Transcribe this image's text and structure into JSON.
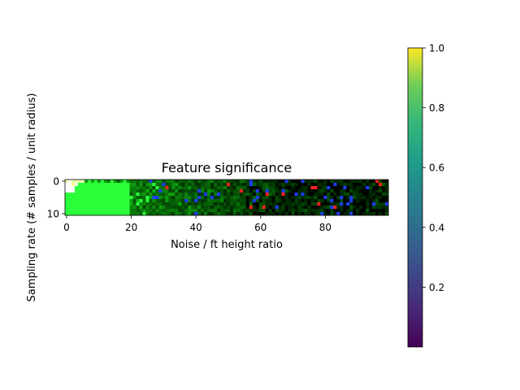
{
  "chart_data": [
    {
      "type": "heatmap",
      "title": "Feature significance",
      "xlabel": "Noise / ft height ratio",
      "ylabel": "Sampling rate (# samples / unit radius)",
      "x_range": [
        0,
        99
      ],
      "y_range": [
        0,
        10
      ],
      "x_ticks": [
        "0",
        "20",
        "40",
        "60",
        "80"
      ],
      "y_ticks": [
        "0",
        "10"
      ],
      "n_cols": 100,
      "n_rows": 11,
      "description_hint": "RGB composite: bright green/white at low noise, fading to dark green/black with sparse blue and red pixels as noise increases",
      "colors": {
        "green": "#2bff3a",
        "white": "#ffffff",
        "yellow": "#ffff80",
        "blue": "#1f3cff",
        "red": "#ff2020",
        "black": "#000000"
      }
    },
    {
      "type": "colorbar",
      "colormap": "viridis",
      "range": [
        0,
        1
      ],
      "ticks": [
        "0.2",
        "0.4",
        "0.6",
        "0.8",
        "1.0"
      ]
    }
  ]
}
